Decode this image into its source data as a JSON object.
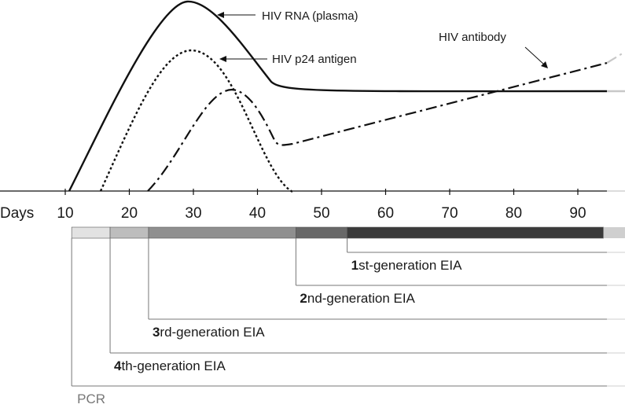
{
  "x_axis": {
    "unit_label": "Days",
    "ticks": [
      10,
      20,
      30,
      40,
      50,
      60,
      70,
      80,
      90
    ],
    "tick_labels": [
      "10",
      "20",
      "30",
      "40",
      "50",
      "60",
      "70",
      "80",
      "90"
    ]
  },
  "curves": [
    {
      "label": "HIV RNA (plasma)",
      "style": "solid",
      "color": "#111111"
    },
    {
      "label": "HIV p24 antigen",
      "style": "dotted",
      "color": "#111111"
    },
    {
      "label": "HIV antibody",
      "style": "dash-dot",
      "color": "#111111"
    }
  ],
  "window_bar": {
    "segments": [
      {
        "from_day": 11,
        "to_day": 17,
        "color": "#e2e2e2"
      },
      {
        "from_day": 17,
        "to_day": 23,
        "color": "#bdbdbd"
      },
      {
        "from_day": 23,
        "to_day": 46,
        "color": "#8f8f8f"
      },
      {
        "from_day": 46,
        "to_day": 54,
        "color": "#686868"
      },
      {
        "from_day": 54,
        "to_day": 94,
        "color": "#3a3a3a"
      }
    ]
  },
  "assays": [
    {
      "number": "1",
      "label": "st-generation EIA",
      "start_day": 54
    },
    {
      "number": "2",
      "label": "nd-generation EIA",
      "start_day": 46
    },
    {
      "number": "3",
      "label": "rd-generation EIA",
      "start_day": 23
    },
    {
      "number": "4",
      "label": "th-generation EIA",
      "start_day": 17
    },
    {
      "number": "",
      "label": "PCR",
      "start_day": 11
    }
  ]
}
